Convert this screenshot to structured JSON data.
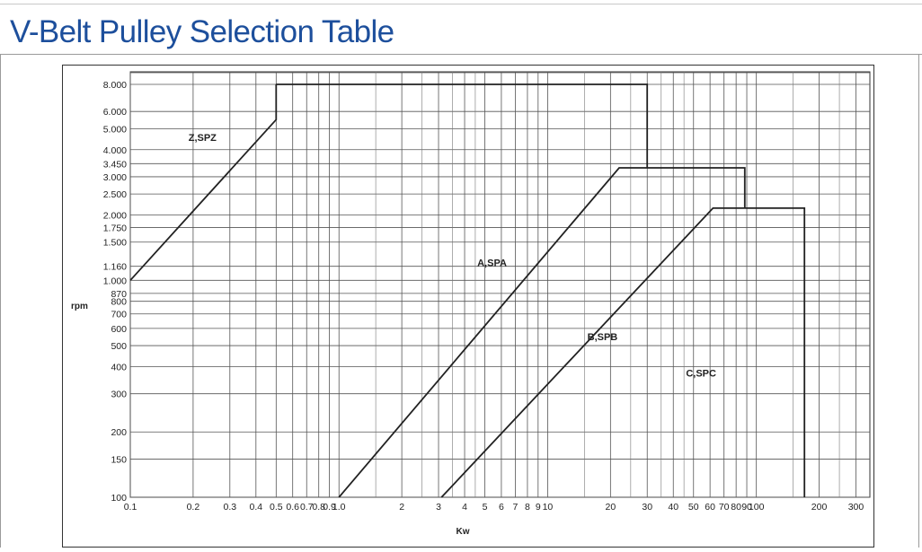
{
  "header": {
    "title": "V-Belt Pulley Selection Table"
  },
  "chart_data": {
    "type": "line",
    "title": "V-Belt Pulley Selection Table",
    "xlabel": "Kw",
    "ylabel": "rpm",
    "x_scale": "log",
    "y_scale": "log",
    "xlim": [
      0.1,
      350
    ],
    "ylim": [
      100,
      8000
    ],
    "grid": true,
    "x_ticks": [
      {
        "v": 0.1,
        "label": "0.1"
      },
      {
        "v": 0.2,
        "label": "0.2"
      },
      {
        "v": 0.3,
        "label": "0.3"
      },
      {
        "v": 0.4,
        "label": "0.4"
      },
      {
        "v": 0.5,
        "label": "0.5"
      },
      {
        "v": 0.6,
        "label": "0.6"
      },
      {
        "v": 0.7,
        "label": "0.7"
      },
      {
        "v": 0.8,
        "label": "0.8"
      },
      {
        "v": 0.9,
        "label": "0.9"
      },
      {
        "v": 1,
        "label": "1.0"
      },
      {
        "v": 2,
        "label": "2"
      },
      {
        "v": 3,
        "label": "3"
      },
      {
        "v": 4,
        "label": "4"
      },
      {
        "v": 5,
        "label": "5"
      },
      {
        "v": 6,
        "label": "6"
      },
      {
        "v": 7,
        "label": "7"
      },
      {
        "v": 8,
        "label": "8"
      },
      {
        "v": 9,
        "label": "9"
      },
      {
        "v": 10,
        "label": "10"
      },
      {
        "v": 20,
        "label": "20"
      },
      {
        "v": 30,
        "label": "30"
      },
      {
        "v": 40,
        "label": "40"
      },
      {
        "v": 50,
        "label": "50"
      },
      {
        "v": 60,
        "label": "60"
      },
      {
        "v": 70,
        "label": "70"
      },
      {
        "v": 80,
        "label": "80"
      },
      {
        "v": 90,
        "label": "90"
      },
      {
        "v": 100,
        "label": "100"
      },
      {
        "v": 200,
        "label": "200"
      },
      {
        "v": 300,
        "label": "300"
      }
    ],
    "x_minor": [
      1.5,
      2.5,
      3.5,
      4.5,
      15,
      25,
      35,
      45,
      150,
      250
    ],
    "y_ticks": [
      {
        "v": 100,
        "label": "100"
      },
      {
        "v": 150,
        "label": "150"
      },
      {
        "v": 200,
        "label": "200"
      },
      {
        "v": 300,
        "label": "300"
      },
      {
        "v": 400,
        "label": "400"
      },
      {
        "v": 500,
        "label": "500"
      },
      {
        "v": 600,
        "label": "600"
      },
      {
        "v": 700,
        "label": "700"
      },
      {
        "v": 800,
        "label": "800"
      },
      {
        "v": 870,
        "label": "870"
      },
      {
        "v": 1000,
        "label": "1.000"
      },
      {
        "v": 1160,
        "label": "1.160"
      },
      {
        "v": 1500,
        "label": "1.500"
      },
      {
        "v": 1750,
        "label": "1.750"
      },
      {
        "v": 2000,
        "label": "2.000"
      },
      {
        "v": 2500,
        "label": "2.500"
      },
      {
        "v": 3000,
        "label": "3.000"
      },
      {
        "v": 3450,
        "label": "3.450"
      },
      {
        "v": 4000,
        "label": "4.000"
      },
      {
        "v": 5000,
        "label": "5.000"
      },
      {
        "v": 6000,
        "label": "6.000"
      },
      {
        "v": 8000,
        "label": "8.000"
      }
    ],
    "series": [
      {
        "name": "Z,SPZ",
        "points": [
          [
            0.1,
            1000
          ],
          [
            0.5,
            5500
          ],
          [
            0.5,
            8000
          ]
        ]
      },
      {
        "name": "A,SPA",
        "points": [
          [
            0.5,
            8000
          ],
          [
            30,
            8000
          ],
          [
            30,
            3300
          ]
        ]
      },
      {
        "name": "B,SPB",
        "points": [
          [
            1.0,
            100
          ],
          [
            22,
            3300
          ],
          [
            88,
            3300
          ],
          [
            88,
            2150
          ]
        ]
      },
      {
        "name": "C,SPC",
        "points": [
          [
            3.1,
            100
          ],
          [
            62,
            2150
          ],
          [
            170,
            2150
          ],
          [
            170,
            100
          ]
        ]
      }
    ],
    "region_labels": [
      {
        "name": "Z,SPZ",
        "x": 0.19,
        "y": 4400
      },
      {
        "name": "A,SPA",
        "x": 4.6,
        "y": 1160
      },
      {
        "name": "B,SPB",
        "x": 15.5,
        "y": 530
      },
      {
        "name": "C,SPC",
        "x": 46,
        "y": 360
      }
    ]
  }
}
